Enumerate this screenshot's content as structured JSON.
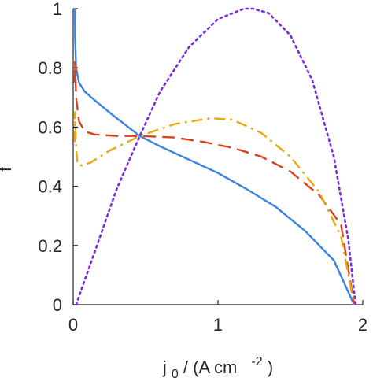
{
  "chart_data": {
    "type": "line",
    "ylabel": "f",
    "xlabel": {
      "base": "j",
      "sub": "0",
      "mid": " / (A cm",
      "sup": "-2",
      "end": ")"
    },
    "xlim": [
      0,
      2.0
    ],
    "ylim": [
      0,
      1.0
    ],
    "xticks": [
      0,
      1,
      2
    ],
    "xtick_labels": [
      "0",
      "1",
      "2"
    ],
    "yticks": [
      0,
      0.2,
      0.4,
      0.6,
      0.8,
      1
    ],
    "ytick_labels": [
      "0",
      "0.2",
      "0.4",
      "0.6",
      "0.8",
      "1"
    ],
    "grid": false,
    "series": [
      {
        "color": "#3a84e0",
        "style": "solid",
        "points": [
          [
            0.012,
            1.0
          ],
          [
            0.013,
            0.9
          ],
          [
            0.02,
            0.8
          ],
          [
            0.04,
            0.75
          ],
          [
            0.08,
            0.72
          ],
          [
            0.15,
            0.69
          ],
          [
            0.3,
            0.63
          ],
          [
            0.46,
            0.57
          ],
          [
            0.6,
            0.535
          ],
          [
            0.8,
            0.49
          ],
          [
            1.0,
            0.445
          ],
          [
            1.2,
            0.39
          ],
          [
            1.4,
            0.33
          ],
          [
            1.6,
            0.25
          ],
          [
            1.8,
            0.15
          ],
          [
            1.94,
            0.0
          ]
        ]
      },
      {
        "color": "#d5441c",
        "style": "dashed",
        "points": [
          [
            0.01,
            0.75
          ],
          [
            0.012,
            0.82
          ],
          [
            0.015,
            0.78
          ],
          [
            0.02,
            0.7
          ],
          [
            0.04,
            0.62
          ],
          [
            0.08,
            0.585
          ],
          [
            0.15,
            0.575
          ],
          [
            0.3,
            0.57
          ],
          [
            0.46,
            0.57
          ],
          [
            0.7,
            0.565
          ],
          [
            0.9,
            0.55
          ],
          [
            1.1,
            0.53
          ],
          [
            1.3,
            0.5
          ],
          [
            1.5,
            0.45
          ],
          [
            1.7,
            0.37
          ],
          [
            1.85,
            0.27
          ],
          [
            1.94,
            0.0
          ]
        ]
      },
      {
        "color": "#e7a812",
        "style": "dashdot",
        "points": [
          [
            0.01,
            0.55
          ],
          [
            0.012,
            0.65
          ],
          [
            0.015,
            0.6
          ],
          [
            0.02,
            0.53
          ],
          [
            0.03,
            0.475
          ],
          [
            0.06,
            0.47
          ],
          [
            0.12,
            0.48
          ],
          [
            0.25,
            0.52
          ],
          [
            0.46,
            0.57
          ],
          [
            0.7,
            0.61
          ],
          [
            0.95,
            0.63
          ],
          [
            1.1,
            0.625
          ],
          [
            1.3,
            0.58
          ],
          [
            1.5,
            0.5
          ],
          [
            1.7,
            0.38
          ],
          [
            1.85,
            0.23
          ],
          [
            1.94,
            0.0
          ]
        ]
      },
      {
        "color": "#7b2bd9",
        "style": "dotted",
        "points": [
          [
            0.02,
            0.0
          ],
          [
            0.15,
            0.18
          ],
          [
            0.3,
            0.39
          ],
          [
            0.46,
            0.57
          ],
          [
            0.6,
            0.72
          ],
          [
            0.8,
            0.87
          ],
          [
            1.0,
            0.965
          ],
          [
            1.18,
            1.0
          ],
          [
            1.24,
            1.0
          ],
          [
            1.35,
            0.985
          ],
          [
            1.5,
            0.91
          ],
          [
            1.65,
            0.76
          ],
          [
            1.8,
            0.5
          ],
          [
            1.9,
            0.22
          ],
          [
            1.95,
            0.0
          ]
        ]
      }
    ]
  }
}
